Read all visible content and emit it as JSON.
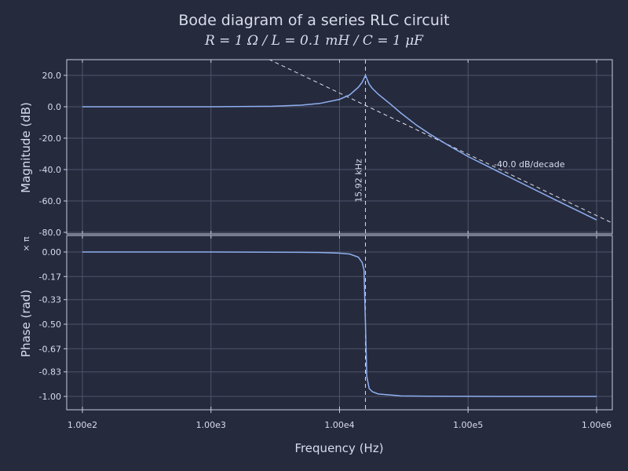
{
  "chart_data": {
    "title": "Bode diagram of a series RLC circuit",
    "subtitle": "R = 1 Ω / L = 0.1 mH / C = 1 μF",
    "xlabel": "Frequency (Hz)",
    "x_scale": "log",
    "xlim": [
      100,
      1000000
    ],
    "x_ticks": [
      100,
      1000,
      10000,
      100000,
      1000000
    ],
    "x_tick_labels": [
      "1.00e2",
      "1.00e3",
      "1.00e4",
      "1.00e5",
      "1.00e6"
    ],
    "circuit": {
      "R": 1,
      "L": 0.0001,
      "C": 1e-06
    },
    "resonance_frequency_hz": 15915.5,
    "resonance_label": "15.92 kHz",
    "panels": [
      {
        "type": "line",
        "ylabel": "Magnitude (dB)",
        "ylim": [
          -80,
          30
        ],
        "y_ticks": [
          20,
          0,
          -20,
          -40,
          -60,
          -80
        ],
        "y_tick_labels": [
          "20.0",
          "0.0",
          "-20.0",
          "-40.0",
          "-60.0",
          "-80.0"
        ],
        "series": [],
        "points": [
          [
            100,
            0.0
          ],
          [
            1000,
            0.03
          ],
          [
            3000,
            0.34
          ],
          [
            5000,
            1.0
          ],
          [
            7000,
            2.1
          ],
          [
            10000,
            4.7
          ],
          [
            12000,
            7.6
          ],
          [
            14000,
            12.4
          ],
          [
            15000,
            15.6
          ],
          [
            15915,
            20.0
          ],
          [
            17000,
            14.4
          ],
          [
            18000,
            11.7
          ],
          [
            20000,
            8.0
          ],
          [
            25000,
            1.6
          ],
          [
            30000,
            -4.0
          ],
          [
            40000,
            -11.9
          ],
          [
            50000,
            -17.2
          ],
          [
            70000,
            -24.5
          ],
          [
            100000,
            -31.7
          ],
          [
            200000,
            -44.0
          ],
          [
            500000,
            -60.1
          ],
          [
            1000000,
            -72.1
          ]
        ],
        "asymptote": {
          "label": "-40.0 dB/decade",
          "slope_db_per_decade": -40,
          "through": [
            15915.5,
            0
          ]
        }
      },
      {
        "type": "line",
        "ylabel": "Phase (rad)",
        "y_unit": "× π",
        "ylim": [
          -1.06,
          0.06
        ],
        "y_ticks": [
          0.0,
          -0.17,
          -0.33,
          -0.5,
          -0.67,
          -0.83,
          -1.0
        ],
        "y_tick_labels": [
          "0.00",
          "-0.17",
          "-0.33",
          "-0.50",
          "-0.67",
          "-0.83",
          "-1.00"
        ],
        "series": [],
        "points": [
          [
            100,
            0.0
          ],
          [
            1000,
            -0.0002
          ],
          [
            3000,
            -0.0012
          ],
          [
            5000,
            -0.0022
          ],
          [
            7000,
            -0.0036
          ],
          [
            10000,
            -0.0083
          ],
          [
            12000,
            -0.0142
          ],
          [
            14000,
            -0.0355
          ],
          [
            15000,
            -0.0722
          ],
          [
            15500,
            -0.1225
          ],
          [
            15915,
            -0.5
          ],
          [
            16300,
            -0.8615
          ],
          [
            17000,
            -0.945
          ],
          [
            18000,
            -0.9673
          ],
          [
            20000,
            -0.983
          ],
          [
            30000,
            -0.9963
          ],
          [
            50000,
            -0.9986
          ],
          [
            100000,
            -0.9996
          ],
          [
            1000000,
            -1.0
          ]
        ]
      }
    ]
  }
}
